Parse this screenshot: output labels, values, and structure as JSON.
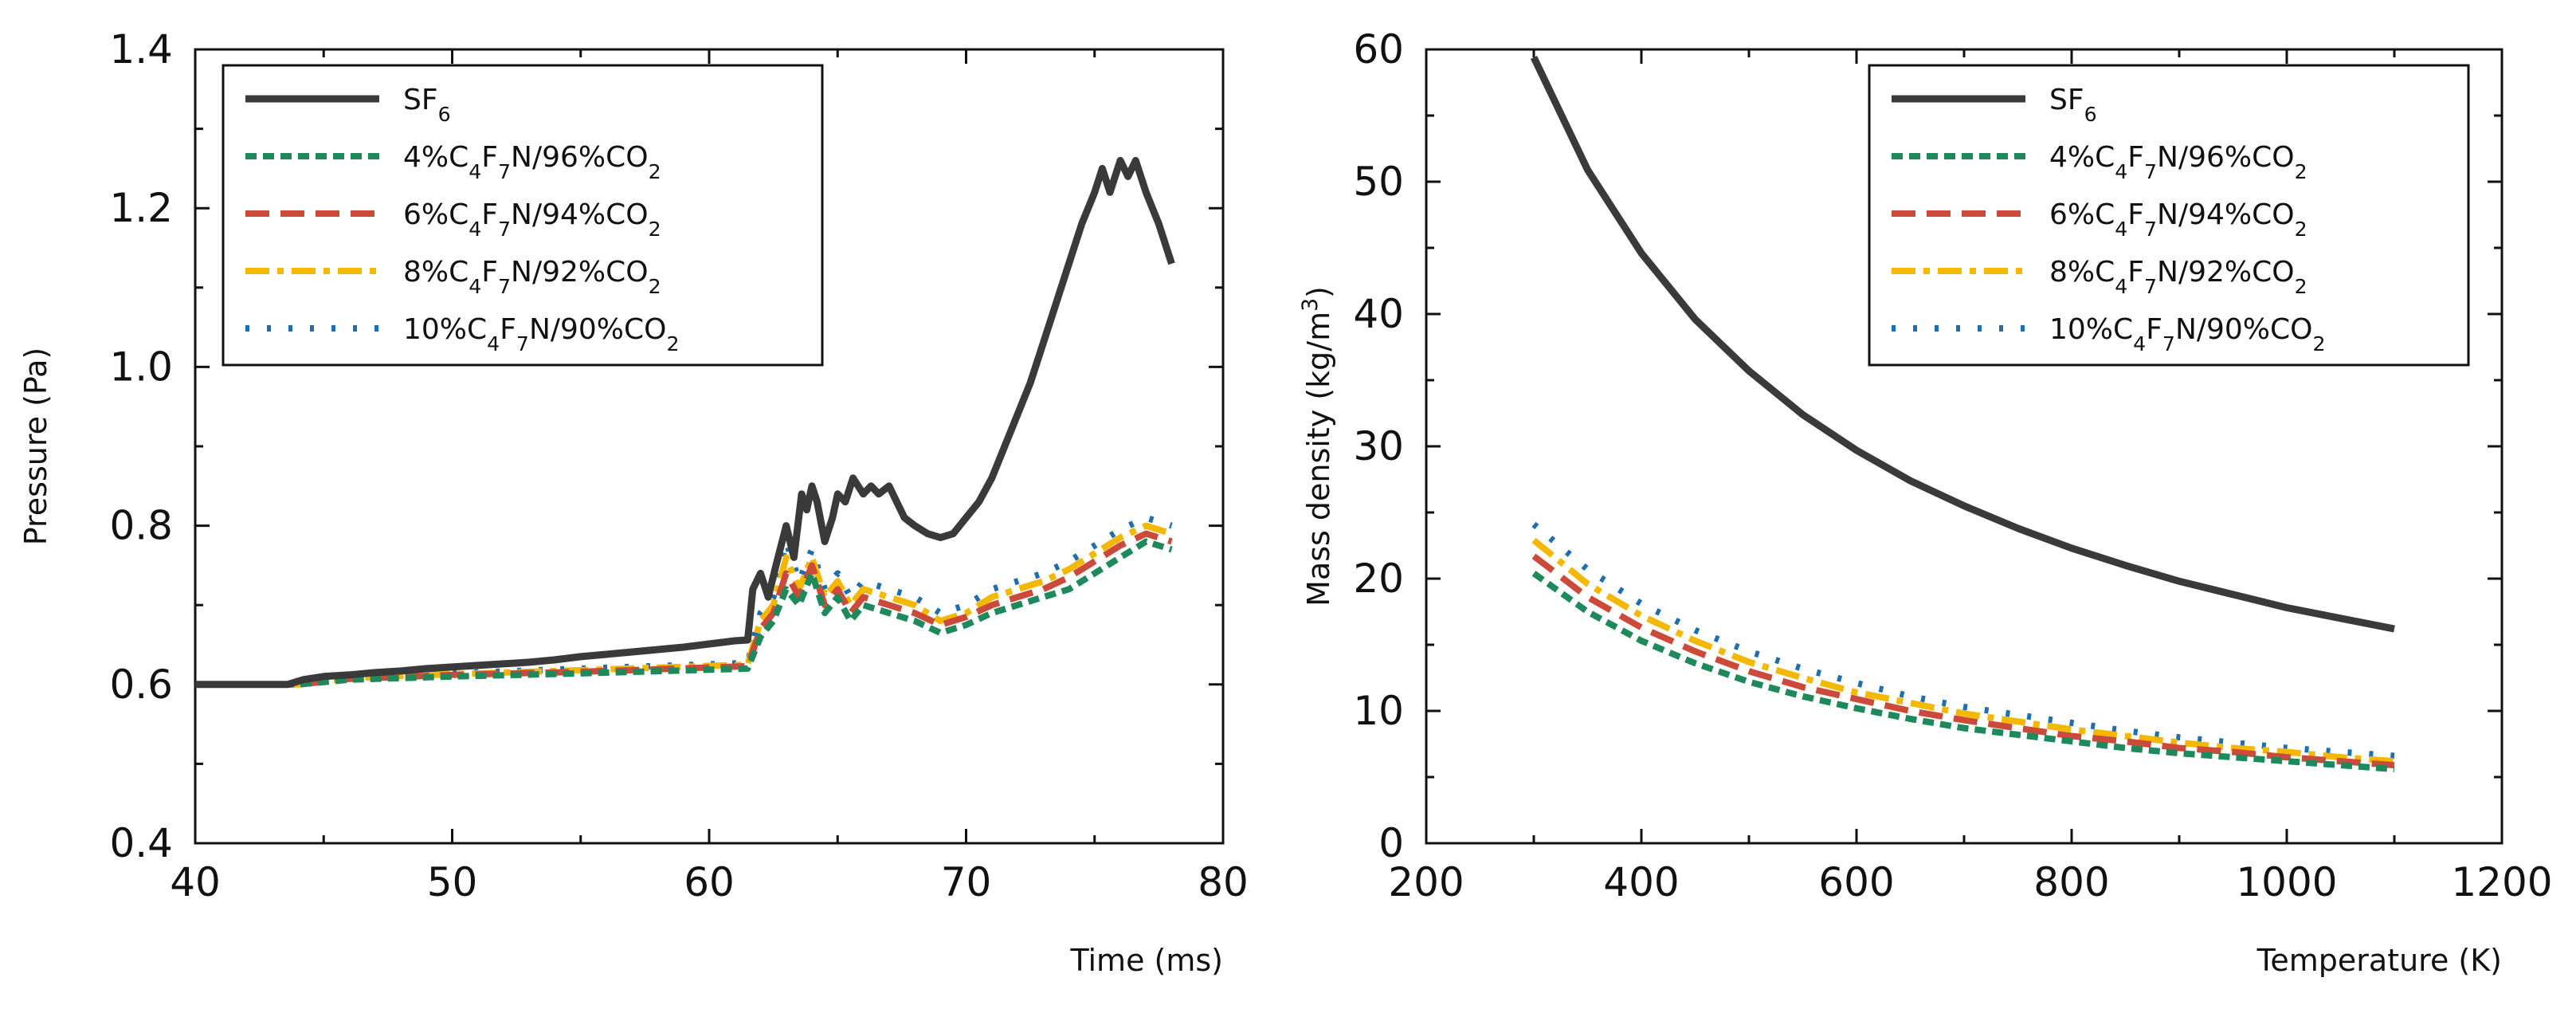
{
  "chart_data": [
    {
      "type": "line",
      "xlabel": "Time (ms)",
      "ylabel": "Pressure (Pa)",
      "xlim": [
        40,
        80
      ],
      "ylim": [
        0.4,
        1.4
      ],
      "xticks": [
        "40",
        "50",
        "60",
        "70",
        "80"
      ],
      "yticks": [
        "0.4",
        "0.6",
        "0.8",
        "1.0",
        "1.2",
        "1.4"
      ],
      "legend_position": "top-left",
      "series": [
        {
          "name": "SF6",
          "legend_main": "SF",
          "legend_parts": [
            [
              "SF",
              ""
            ],
            [
              "6",
              "sub"
            ]
          ],
          "color": "#3a3a3a",
          "style": "solid",
          "x": [
            40,
            43.6,
            44.2,
            45,
            46,
            47,
            48,
            49,
            50,
            51,
            52,
            53,
            54,
            55,
            56,
            57,
            58,
            59,
            60,
            61,
            61.5,
            61.7,
            62,
            62.3,
            62.6,
            63,
            63.3,
            63.6,
            63.8,
            64,
            64.2,
            64.5,
            64.8,
            65,
            65.3,
            65.6,
            66,
            66.3,
            66.6,
            67,
            67.3,
            67.6,
            68,
            68.5,
            69,
            69.5,
            70,
            70.5,
            71,
            71.5,
            72,
            72.5,
            73,
            73.5,
            74,
            74.5,
            75,
            75.3,
            75.6,
            76,
            76.3,
            76.6,
            77,
            77.5,
            78
          ],
          "y": [
            0.6,
            0.6,
            0.606,
            0.61,
            0.612,
            0.615,
            0.617,
            0.62,
            0.622,
            0.624,
            0.626,
            0.628,
            0.631,
            0.635,
            0.638,
            0.641,
            0.644,
            0.647,
            0.651,
            0.655,
            0.656,
            0.72,
            0.74,
            0.71,
            0.75,
            0.8,
            0.76,
            0.84,
            0.82,
            0.85,
            0.83,
            0.78,
            0.81,
            0.84,
            0.83,
            0.86,
            0.84,
            0.85,
            0.84,
            0.85,
            0.83,
            0.81,
            0.8,
            0.79,
            0.785,
            0.79,
            0.81,
            0.83,
            0.86,
            0.9,
            0.94,
            0.98,
            1.03,
            1.08,
            1.13,
            1.18,
            1.22,
            1.25,
            1.22,
            1.26,
            1.24,
            1.26,
            1.22,
            1.18,
            1.13
          ]
        },
        {
          "name": "4%C4F7N/96%CO2",
          "legend_main": "4%C4F7N/96%CO2",
          "legend_parts": [
            [
              "4%C",
              ""
            ],
            [
              "4",
              "sub"
            ],
            [
              "F",
              ""
            ],
            [
              "7",
              "sub"
            ],
            [
              "N/96%CO",
              ""
            ],
            [
              "2",
              "sub"
            ]
          ],
          "color": "#1e8a5c",
          "style": "dashed-short",
          "x": [
            40,
            44,
            46,
            50,
            55,
            61.5,
            62,
            62.5,
            63,
            63.5,
            64,
            64.5,
            65,
            65.5,
            66,
            67,
            68,
            69,
            70,
            71,
            72,
            73,
            74,
            75,
            76,
            77,
            78
          ],
          "y": [
            0.6,
            0.6,
            0.606,
            0.61,
            0.614,
            0.62,
            0.66,
            0.68,
            0.72,
            0.7,
            0.74,
            0.69,
            0.71,
            0.68,
            0.7,
            0.69,
            0.68,
            0.665,
            0.675,
            0.69,
            0.7,
            0.71,
            0.72,
            0.74,
            0.76,
            0.78,
            0.77
          ]
        },
        {
          "name": "6%C4F7N/94%CO2",
          "legend_main": "6%C4F7N/94%CO2",
          "legend_parts": [
            [
              "6%C",
              ""
            ],
            [
              "4",
              "sub"
            ],
            [
              "F",
              ""
            ],
            [
              "7",
              "sub"
            ],
            [
              "N/94%CO",
              ""
            ],
            [
              "2",
              "sub"
            ]
          ],
          "color": "#cc4a3a",
          "style": "dashed-long",
          "x": [
            40,
            44,
            46,
            50,
            55,
            61.5,
            62,
            62.5,
            63,
            63.5,
            64,
            64.5,
            65,
            65.5,
            66,
            67,
            68,
            69,
            70,
            71,
            72,
            73,
            74,
            75,
            76,
            77,
            78
          ],
          "y": [
            0.6,
            0.6,
            0.607,
            0.612,
            0.616,
            0.623,
            0.67,
            0.69,
            0.74,
            0.71,
            0.75,
            0.7,
            0.72,
            0.69,
            0.71,
            0.7,
            0.69,
            0.675,
            0.685,
            0.7,
            0.71,
            0.72,
            0.735,
            0.755,
            0.775,
            0.79,
            0.78
          ]
        },
        {
          "name": "8%C4F7N/92%CO2",
          "legend_main": "8%C4F7N/92%CO2",
          "legend_parts": [
            [
              "8%C",
              ""
            ],
            [
              "4",
              "sub"
            ],
            [
              "F",
              ""
            ],
            [
              "7",
              "sub"
            ],
            [
              "N/92%CO",
              ""
            ],
            [
              "2",
              "sub"
            ]
          ],
          "color": "#f5b800",
          "style": "dash-dot",
          "x": [
            40,
            44,
            46,
            50,
            55,
            61.5,
            62,
            62.5,
            63,
            63.5,
            64,
            64.5,
            65,
            65.5,
            66,
            67,
            68,
            69,
            70,
            71,
            72,
            73,
            74,
            75,
            76,
            77,
            78
          ],
          "y": [
            0.6,
            0.6,
            0.608,
            0.613,
            0.618,
            0.625,
            0.68,
            0.7,
            0.76,
            0.72,
            0.76,
            0.71,
            0.73,
            0.7,
            0.72,
            0.71,
            0.7,
            0.68,
            0.69,
            0.71,
            0.72,
            0.73,
            0.745,
            0.765,
            0.785,
            0.8,
            0.79
          ]
        },
        {
          "name": "10%C4F7N/90%CO2",
          "legend_main": "10%C4F7N/90%CO2",
          "legend_parts": [
            [
              "10%C",
              ""
            ],
            [
              "4",
              "sub"
            ],
            [
              "F",
              ""
            ],
            [
              "7",
              "sub"
            ],
            [
              "N/90%CO",
              ""
            ],
            [
              "2",
              "sub"
            ]
          ],
          "color": "#1f6fb0",
          "style": "dotted",
          "x": [
            40,
            44,
            46,
            50,
            55,
            61.5,
            62,
            62.5,
            63,
            63.5,
            64,
            64.5,
            65,
            65.5,
            66,
            67,
            68,
            69,
            70,
            71,
            72,
            73,
            74,
            75,
            76,
            77,
            78
          ],
          "y": [
            0.6,
            0.6,
            0.609,
            0.614,
            0.62,
            0.627,
            0.69,
            0.71,
            0.78,
            0.73,
            0.77,
            0.72,
            0.74,
            0.71,
            0.73,
            0.72,
            0.71,
            0.69,
            0.7,
            0.72,
            0.73,
            0.74,
            0.755,
            0.775,
            0.795,
            0.81,
            0.8
          ]
        }
      ]
    },
    {
      "type": "line",
      "xlabel": "Temperature (K)",
      "ylabel": "Mass density (kg/m3)",
      "ylabel_parts": [
        [
          "Mass density (kg/m",
          ""
        ],
        [
          "3",
          "sup"
        ],
        [
          ")",
          ""
        ]
      ],
      "xlim": [
        200,
        1200
      ],
      "ylim": [
        0,
        60
      ],
      "xticks": [
        "200",
        "400",
        "600",
        "800",
        "1000",
        "1200"
      ],
      "yticks": [
        "0",
        "10",
        "20",
        "30",
        "40",
        "50",
        "60"
      ],
      "legend_position": "top-right",
      "series": [
        {
          "name": "SF6",
          "color": "#3a3a3a",
          "style": "solid",
          "x": [
            300,
            350,
            400,
            450,
            500,
            550,
            600,
            650,
            700,
            750,
            800,
            850,
            900,
            950,
            1000,
            1050,
            1100
          ],
          "y": [
            59.4,
            50.9,
            44.6,
            39.6,
            35.7,
            32.4,
            29.7,
            27.4,
            25.5,
            23.8,
            22.3,
            21.0,
            19.8,
            18.8,
            17.8,
            17.0,
            16.2
          ]
        },
        {
          "name": "4%C4F7N/96%CO2",
          "color": "#1e8a5c",
          "style": "dashed-short",
          "x": [
            300,
            350,
            400,
            450,
            500,
            550,
            600,
            650,
            700,
            750,
            800,
            850,
            900,
            950,
            1000,
            1050,
            1100
          ],
          "y": [
            20.4,
            17.5,
            15.3,
            13.6,
            12.2,
            11.1,
            10.2,
            9.4,
            8.7,
            8.2,
            7.7,
            7.2,
            6.8,
            6.5,
            6.2,
            5.9,
            5.6
          ]
        },
        {
          "name": "6%C4F7N/94%CO2",
          "color": "#cc4a3a",
          "style": "dashed-long",
          "x": [
            300,
            350,
            400,
            450,
            500,
            550,
            600,
            650,
            700,
            750,
            800,
            850,
            900,
            950,
            1000,
            1050,
            1100
          ],
          "y": [
            21.7,
            18.6,
            16.3,
            14.5,
            13.0,
            11.8,
            10.9,
            10.0,
            9.3,
            8.7,
            8.1,
            7.7,
            7.2,
            6.9,
            6.5,
            6.2,
            5.9
          ]
        },
        {
          "name": "8%C4F7N/92%CO2",
          "color": "#f5b800",
          "style": "dash-dot",
          "x": [
            300,
            350,
            400,
            450,
            500,
            550,
            600,
            650,
            700,
            750,
            800,
            850,
            900,
            950,
            1000,
            1050,
            1100
          ],
          "y": [
            22.9,
            19.6,
            17.2,
            15.3,
            13.7,
            12.5,
            11.4,
            10.6,
            9.8,
            9.2,
            8.6,
            8.1,
            7.6,
            7.2,
            6.9,
            6.5,
            6.2
          ]
        },
        {
          "name": "10%C4F7N/90%CO2",
          "color": "#1f6fb0",
          "style": "dotted",
          "x": [
            300,
            350,
            400,
            450,
            500,
            550,
            600,
            650,
            700,
            750,
            800,
            850,
            900,
            950,
            1000,
            1050,
            1100
          ],
          "y": [
            24.1,
            20.7,
            18.1,
            16.1,
            14.5,
            13.2,
            12.1,
            11.1,
            10.3,
            9.7,
            9.1,
            8.5,
            8.0,
            7.6,
            7.2,
            6.9,
            6.6
          ]
        }
      ]
    }
  ]
}
